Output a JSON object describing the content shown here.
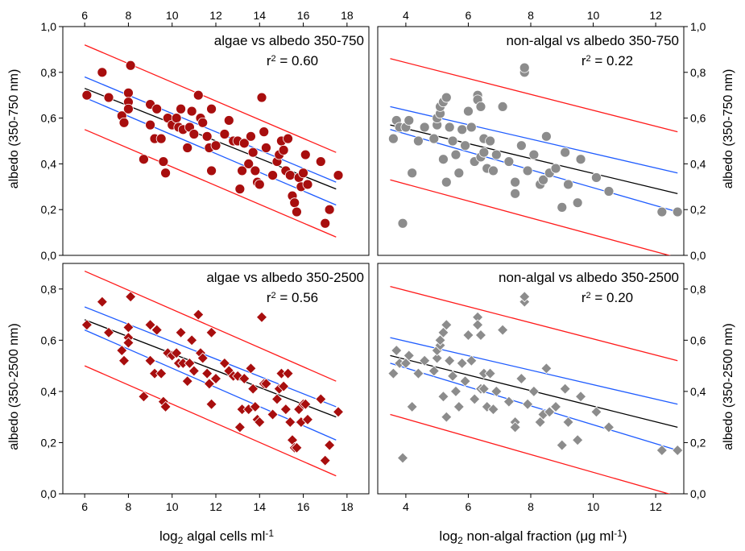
{
  "figure": {
    "y_label_top": "albedo (350-750 nm)",
    "y_label_bottom": "albedo (350-2500 nm)",
    "x_label_left": {
      "prefix": "log",
      "sub": "2",
      "suffix": " algal cells ml",
      "sup": "-1"
    },
    "x_label_right": {
      "prefix": "log",
      "sub": "2",
      "suffix": " non-algal fraction (μg ml",
      "sup": "-1",
      "close": ")"
    }
  },
  "chart_data": [
    {
      "type": "scatter",
      "panel": "top-left",
      "marker": "circle",
      "color": "#a80e0e",
      "title": "algae vs albedo 350-750",
      "r2_label": "r",
      "r2_sup": "2",
      "r2_value": " = 0.60",
      "xlim": [
        5,
        19
      ],
      "ylim": [
        0,
        1
      ],
      "x_ticks": [
        6,
        8,
        10,
        12,
        14,
        16,
        18
      ],
      "y_ticks": [
        0,
        0.2,
        0.4,
        0.6,
        0.8,
        1.0
      ],
      "y_tick_labels": [
        "0,0",
        "0,2",
        "0,4",
        "0,6",
        "0,8",
        "1,0"
      ],
      "regression": [
        [
          6.0,
          0.73
        ],
        [
          17.5,
          0.29
        ]
      ],
      "ci_upper": [
        [
          6.0,
          0.78
        ],
        [
          17.5,
          0.32
        ]
      ],
      "ci_lower": [
        [
          6.0,
          0.69
        ],
        [
          17.5,
          0.22
        ]
      ],
      "pi_upper": [
        [
          6.0,
          0.92
        ],
        [
          17.5,
          0.45
        ]
      ],
      "pi_lower": [
        [
          6.0,
          0.55
        ],
        [
          17.5,
          0.08
        ]
      ],
      "points": [
        [
          6.1,
          0.7
        ],
        [
          6.8,
          0.8
        ],
        [
          7.1,
          0.69
        ],
        [
          7.7,
          0.61
        ],
        [
          7.8,
          0.58
        ],
        [
          8.0,
          0.71
        ],
        [
          8.0,
          0.67
        ],
        [
          8.1,
          0.83
        ],
        [
          8.0,
          0.64
        ],
        [
          8.7,
          0.42
        ],
        [
          9.0,
          0.66
        ],
        [
          9.0,
          0.57
        ],
        [
          9.3,
          0.64
        ],
        [
          9.2,
          0.51
        ],
        [
          9.5,
          0.51
        ],
        [
          9.6,
          0.41
        ],
        [
          9.7,
          0.36
        ],
        [
          9.8,
          0.6
        ],
        [
          10.0,
          0.57
        ],
        [
          10.2,
          0.6
        ],
        [
          10.3,
          0.56
        ],
        [
          10.4,
          0.64
        ],
        [
          10.5,
          0.55
        ],
        [
          10.7,
          0.47
        ],
        [
          10.8,
          0.56
        ],
        [
          10.9,
          0.63
        ],
        [
          11.0,
          0.53
        ],
        [
          11.2,
          0.7
        ],
        [
          11.3,
          0.6
        ],
        [
          11.4,
          0.58
        ],
        [
          11.6,
          0.52
        ],
        [
          11.7,
          0.47
        ],
        [
          11.8,
          0.37
        ],
        [
          11.8,
          0.64
        ],
        [
          12.0,
          0.48
        ],
        [
          12.4,
          0.53
        ],
        [
          12.6,
          0.59
        ],
        [
          12.8,
          0.5
        ],
        [
          13.0,
          0.5
        ],
        [
          13.1,
          0.29
        ],
        [
          13.2,
          0.37
        ],
        [
          13.3,
          0.49
        ],
        [
          13.5,
          0.4
        ],
        [
          13.6,
          0.52
        ],
        [
          13.7,
          0.45
        ],
        [
          13.8,
          0.37
        ],
        [
          13.9,
          0.32
        ],
        [
          14.0,
          0.31
        ],
        [
          14.1,
          0.69
        ],
        [
          14.2,
          0.54
        ],
        [
          14.3,
          0.47
        ],
        [
          14.6,
          0.35
        ],
        [
          14.8,
          0.41
        ],
        [
          14.9,
          0.44
        ],
        [
          15.0,
          0.5
        ],
        [
          15.1,
          0.46
        ],
        [
          15.2,
          0.37
        ],
        [
          15.3,
          0.51
        ],
        [
          15.4,
          0.35
        ],
        [
          15.5,
          0.26
        ],
        [
          15.6,
          0.23
        ],
        [
          15.7,
          0.19
        ],
        [
          15.8,
          0.34
        ],
        [
          15.9,
          0.3
        ],
        [
          16.0,
          0.36
        ],
        [
          16.1,
          0.44
        ],
        [
          16.2,
          0.31
        ],
        [
          16.8,
          0.41
        ],
        [
          17.0,
          0.14
        ],
        [
          17.2,
          0.2
        ],
        [
          17.6,
          0.35
        ]
      ]
    },
    {
      "type": "scatter",
      "panel": "top-right",
      "marker": "circle",
      "color": "#8c8c8c",
      "title": "non-algal vs albedo 350-750",
      "r2_label": "r",
      "r2_sup": "2",
      "r2_value": " = 0.22",
      "xlim": [
        3.1,
        12.9
      ],
      "ylim": [
        0,
        1
      ],
      "x_ticks": [
        4,
        6,
        8,
        10,
        12
      ],
      "y_ticks": [
        0,
        0.2,
        0.4,
        0.6,
        0.8,
        1.0
      ],
      "y_tick_labels": [
        "0,0",
        "0,2",
        "0,4",
        "0,6",
        "0,8",
        "1,0"
      ],
      "regression": [
        [
          3.5,
          0.57
        ],
        [
          12.7,
          0.27
        ]
      ],
      "ci_upper": [
        [
          3.5,
          0.65
        ],
        [
          12.7,
          0.36
        ]
      ],
      "ci_lower": [
        [
          3.5,
          0.55
        ],
        [
          12.7,
          0.19
        ]
      ],
      "pi_upper": [
        [
          3.5,
          0.86
        ],
        [
          12.7,
          0.54
        ]
      ],
      "pi_lower": [
        [
          3.5,
          0.33
        ],
        [
          12.7,
          -0.01
        ]
      ],
      "points": [
        [
          3.6,
          0.51
        ],
        [
          3.7,
          0.59
        ],
        [
          3.8,
          0.56
        ],
        [
          3.9,
          0.14
        ],
        [
          4.0,
          0.56
        ],
        [
          4.1,
          0.59
        ],
        [
          4.2,
          0.36
        ],
        [
          4.4,
          0.5
        ],
        [
          4.6,
          0.56
        ],
        [
          4.9,
          0.51
        ],
        [
          5.0,
          0.57
        ],
        [
          5.0,
          0.6
        ],
        [
          5.1,
          0.62
        ],
        [
          5.1,
          0.65
        ],
        [
          5.2,
          0.67
        ],
        [
          5.3,
          0.69
        ],
        [
          5.2,
          0.42
        ],
        [
          5.3,
          0.32
        ],
        [
          5.4,
          0.56
        ],
        [
          5.5,
          0.5
        ],
        [
          5.6,
          0.44
        ],
        [
          5.7,
          0.36
        ],
        [
          5.8,
          0.55
        ],
        [
          5.9,
          0.48
        ],
        [
          6.0,
          0.63
        ],
        [
          6.1,
          0.56
        ],
        [
          6.2,
          0.41
        ],
        [
          6.3,
          0.7
        ],
        [
          6.3,
          0.68
        ],
        [
          6.4,
          0.65
        ],
        [
          6.4,
          0.43
        ],
        [
          6.5,
          0.51
        ],
        [
          6.5,
          0.45
        ],
        [
          6.6,
          0.38
        ],
        [
          6.7,
          0.5
        ],
        [
          6.8,
          0.37
        ],
        [
          6.9,
          0.44
        ],
        [
          7.1,
          0.65
        ],
        [
          7.3,
          0.41
        ],
        [
          7.5,
          0.32
        ],
        [
          7.5,
          0.27
        ],
        [
          7.7,
          0.48
        ],
        [
          7.8,
          0.8
        ],
        [
          7.8,
          0.82
        ],
        [
          7.9,
          0.37
        ],
        [
          8.1,
          0.44
        ],
        [
          8.3,
          0.31
        ],
        [
          8.4,
          0.33
        ],
        [
          8.5,
          0.52
        ],
        [
          8.6,
          0.36
        ],
        [
          8.8,
          0.38
        ],
        [
          9.0,
          0.21
        ],
        [
          9.1,
          0.45
        ],
        [
          9.2,
          0.31
        ],
        [
          9.5,
          0.23
        ],
        [
          9.6,
          0.42
        ],
        [
          10.1,
          0.34
        ],
        [
          10.5,
          0.28
        ],
        [
          12.2,
          0.19
        ],
        [
          12.7,
          0.19
        ]
      ]
    },
    {
      "type": "scatter",
      "panel": "bottom-left",
      "marker": "diamond",
      "color": "#a80e0e",
      "title": "algae vs albedo 350-2500",
      "r2_label": "r",
      "r2_sup": "2",
      "r2_value": " = 0.56",
      "xlim": [
        5,
        19
      ],
      "ylim": [
        0,
        0.9
      ],
      "x_ticks": [
        6,
        8,
        10,
        12,
        14,
        16,
        18
      ],
      "y_ticks": [
        0,
        0.2,
        0.4,
        0.6,
        0.8
      ],
      "y_tick_labels": [
        "0,0",
        "0,2",
        "0,4",
        "0,6",
        "0,8"
      ],
      "regression": [
        [
          6.0,
          0.68
        ],
        [
          17.5,
          0.3
        ]
      ],
      "ci_upper": [
        [
          6.0,
          0.73
        ],
        [
          17.5,
          0.34
        ]
      ],
      "ci_lower": [
        [
          6.0,
          0.64
        ],
        [
          17.5,
          0.21
        ]
      ],
      "pi_upper": [
        [
          6.0,
          0.87
        ],
        [
          17.5,
          0.44
        ]
      ],
      "pi_lower": [
        [
          6.0,
          0.5
        ],
        [
          17.5,
          0.07
        ]
      ],
      "points": [
        [
          6.1,
          0.66
        ],
        [
          6.8,
          0.75
        ],
        [
          7.1,
          0.63
        ],
        [
          7.7,
          0.56
        ],
        [
          7.8,
          0.52
        ],
        [
          8.0,
          0.65
        ],
        [
          8.0,
          0.61
        ],
        [
          8.1,
          0.77
        ],
        [
          8.0,
          0.59
        ],
        [
          8.7,
          0.38
        ],
        [
          9.0,
          0.66
        ],
        [
          9.0,
          0.52
        ],
        [
          9.3,
          0.64
        ],
        [
          9.2,
          0.47
        ],
        [
          9.5,
          0.47
        ],
        [
          9.6,
          0.36
        ],
        [
          9.7,
          0.34
        ],
        [
          9.8,
          0.55
        ],
        [
          10.0,
          0.54
        ],
        [
          10.2,
          0.55
        ],
        [
          10.3,
          0.51
        ],
        [
          10.4,
          0.63
        ],
        [
          10.5,
          0.51
        ],
        [
          10.7,
          0.44
        ],
        [
          10.8,
          0.51
        ],
        [
          10.9,
          0.6
        ],
        [
          11.0,
          0.48
        ],
        [
          11.2,
          0.7
        ],
        [
          11.3,
          0.55
        ],
        [
          11.4,
          0.53
        ],
        [
          11.6,
          0.47
        ],
        [
          11.7,
          0.43
        ],
        [
          11.8,
          0.35
        ],
        [
          11.8,
          0.63
        ],
        [
          12.0,
          0.45
        ],
        [
          12.4,
          0.51
        ],
        [
          12.6,
          0.48
        ],
        [
          12.8,
          0.46
        ],
        [
          13.0,
          0.46
        ],
        [
          13.1,
          0.26
        ],
        [
          13.2,
          0.33
        ],
        [
          13.3,
          0.45
        ],
        [
          13.5,
          0.33
        ],
        [
          13.6,
          0.49
        ],
        [
          13.7,
          0.41
        ],
        [
          13.8,
          0.34
        ],
        [
          13.9,
          0.29
        ],
        [
          14.0,
          0.28
        ],
        [
          14.1,
          0.69
        ],
        [
          14.2,
          0.43
        ],
        [
          14.3,
          0.43
        ],
        [
          14.6,
          0.31
        ],
        [
          14.8,
          0.37
        ],
        [
          14.9,
          0.41
        ],
        [
          15.0,
          0.47
        ],
        [
          15.1,
          0.42
        ],
        [
          15.2,
          0.33
        ],
        [
          15.3,
          0.47
        ],
        [
          15.4,
          0.28
        ],
        [
          15.5,
          0.21
        ],
        [
          15.6,
          0.18
        ],
        [
          15.7,
          0.18
        ],
        [
          15.8,
          0.33
        ],
        [
          15.9,
          0.28
        ],
        [
          16.0,
          0.35
        ],
        [
          16.1,
          0.35
        ],
        [
          16.2,
          0.29
        ],
        [
          16.8,
          0.37
        ],
        [
          17.0,
          0.13
        ],
        [
          17.2,
          0.19
        ],
        [
          17.6,
          0.32
        ]
      ]
    },
    {
      "type": "scatter",
      "panel": "bottom-right",
      "marker": "diamond",
      "color": "#8c8c8c",
      "title": "non-algal vs albedo 350-2500",
      "r2_label": "r",
      "r2_sup": "2",
      "r2_value": " = 0.20",
      "xlim": [
        3.1,
        12.9
      ],
      "ylim": [
        0,
        0.9
      ],
      "x_ticks": [
        4,
        6,
        8,
        10,
        12
      ],
      "y_ticks": [
        0,
        0.2,
        0.4,
        0.6,
        0.8
      ],
      "y_tick_labels": [
        "0,0",
        "0,2",
        "0,4",
        "0,6",
        "0,8"
      ],
      "regression": [
        [
          3.5,
          0.54
        ],
        [
          12.7,
          0.26
        ]
      ],
      "ci_upper": [
        [
          3.5,
          0.61
        ],
        [
          12.7,
          0.35
        ]
      ],
      "ci_lower": [
        [
          3.5,
          0.51
        ],
        [
          12.7,
          0.17
        ]
      ],
      "pi_upper": [
        [
          3.5,
          0.81
        ],
        [
          12.7,
          0.52
        ]
      ],
      "pi_lower": [
        [
          3.5,
          0.31
        ],
        [
          12.7,
          -0.01
        ]
      ],
      "points": [
        [
          3.6,
          0.47
        ],
        [
          3.7,
          0.56
        ],
        [
          3.8,
          0.51
        ],
        [
          3.9,
          0.14
        ],
        [
          4.0,
          0.51
        ],
        [
          4.1,
          0.54
        ],
        [
          4.2,
          0.34
        ],
        [
          4.4,
          0.47
        ],
        [
          4.6,
          0.52
        ],
        [
          4.9,
          0.48
        ],
        [
          5.0,
          0.53
        ],
        [
          5.0,
          0.56
        ],
        [
          5.1,
          0.58
        ],
        [
          5.1,
          0.6
        ],
        [
          5.2,
          0.63
        ],
        [
          5.3,
          0.66
        ],
        [
          5.2,
          0.38
        ],
        [
          5.3,
          0.3
        ],
        [
          5.4,
          0.52
        ],
        [
          5.5,
          0.46
        ],
        [
          5.6,
          0.4
        ],
        [
          5.7,
          0.34
        ],
        [
          5.8,
          0.51
        ],
        [
          5.9,
          0.44
        ],
        [
          6.0,
          0.62
        ],
        [
          6.1,
          0.52
        ],
        [
          6.2,
          0.37
        ],
        [
          6.3,
          0.69
        ],
        [
          6.3,
          0.66
        ],
        [
          6.4,
          0.62
        ],
        [
          6.4,
          0.41
        ],
        [
          6.5,
          0.47
        ],
        [
          6.5,
          0.41
        ],
        [
          6.6,
          0.34
        ],
        [
          6.7,
          0.47
        ],
        [
          6.8,
          0.33
        ],
        [
          6.9,
          0.4
        ],
        [
          7.1,
          0.64
        ],
        [
          7.3,
          0.36
        ],
        [
          7.5,
          0.28
        ],
        [
          7.5,
          0.26
        ],
        [
          7.7,
          0.45
        ],
        [
          7.8,
          0.75
        ],
        [
          7.8,
          0.77
        ],
        [
          7.9,
          0.35
        ],
        [
          8.1,
          0.4
        ],
        [
          8.3,
          0.28
        ],
        [
          8.4,
          0.31
        ],
        [
          8.5,
          0.49
        ],
        [
          8.6,
          0.32
        ],
        [
          8.8,
          0.34
        ],
        [
          9.0,
          0.19
        ],
        [
          9.1,
          0.41
        ],
        [
          9.2,
          0.28
        ],
        [
          9.5,
          0.21
        ],
        [
          9.6,
          0.38
        ],
        [
          10.1,
          0.32
        ],
        [
          10.5,
          0.26
        ],
        [
          12.2,
          0.17
        ],
        [
          12.7,
          0.17
        ]
      ]
    }
  ]
}
